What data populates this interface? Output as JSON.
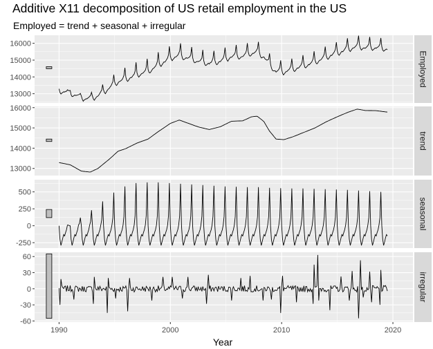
{
  "chart_data": {
    "type": "line",
    "title": "Additive X11 decomposition of US retail employment in the US",
    "subtitle": "Employed = trend + seasonal + irregular",
    "xlabel": "Year",
    "x_ticks": [
      1990,
      2000,
      2010,
      2020
    ],
    "xlim": [
      1987.8,
      2021.8
    ],
    "data_range": [
      1990.0,
      2019.5
    ],
    "grid": true,
    "background": "#ebebeb",
    "gridline_color": "#ffffff",
    "strip_color": "#d9d9d9",
    "line_color": "#000000",
    "scale_bar_fill": "#bfbfbf",
    "panels": [
      {
        "name": "Employed",
        "ylim": [
          12450,
          16480
        ],
        "yticks": [
          13000,
          14000,
          15000,
          16000
        ],
        "scale_bar": [
          14490,
          14610
        ],
        "trend": [
          [
            1990.0,
            13290
          ],
          [
            1991.0,
            13180
          ],
          [
            1992.0,
            12870
          ],
          [
            1992.8,
            12820
          ],
          [
            1993.5,
            13000
          ],
          [
            1994.5,
            13450
          ],
          [
            1995.3,
            13850
          ],
          [
            1996.0,
            13980
          ],
          [
            1997.0,
            14250
          ],
          [
            1998.0,
            14450
          ],
          [
            1999.0,
            14850
          ],
          [
            2000.0,
            15220
          ],
          [
            2000.8,
            15390
          ],
          [
            2001.5,
            15250
          ],
          [
            2002.5,
            15050
          ],
          [
            2003.5,
            14920
          ],
          [
            2004.5,
            15060
          ],
          [
            2005.5,
            15330
          ],
          [
            2006.5,
            15350
          ],
          [
            2007.3,
            15550
          ],
          [
            2007.8,
            15580
          ],
          [
            2008.4,
            15320
          ],
          [
            2008.9,
            14850
          ],
          [
            2009.5,
            14450
          ],
          [
            2010.2,
            14420
          ],
          [
            2011.0,
            14560
          ],
          [
            2012.0,
            14780
          ],
          [
            2013.0,
            15000
          ],
          [
            2014.0,
            15300
          ],
          [
            2015.0,
            15550
          ],
          [
            2016.0,
            15780
          ],
          [
            2016.8,
            15930
          ],
          [
            2017.5,
            15860
          ],
          [
            2018.5,
            15850
          ],
          [
            2019.5,
            15780
          ]
        ],
        "seasonal_scale": 1.0,
        "noise_scale": 0.6
      },
      {
        "name": "trend",
        "ylim": [
          12650,
          16060
        ],
        "yticks": [
          13000,
          14000,
          15000,
          16000
        ],
        "scale_bar": [
          14330,
          14450
        ],
        "trend": [
          [
            1990.0,
            13290
          ],
          [
            1991.0,
            13180
          ],
          [
            1992.0,
            12870
          ],
          [
            1992.8,
            12820
          ],
          [
            1993.5,
            13000
          ],
          [
            1994.5,
            13450
          ],
          [
            1995.3,
            13850
          ],
          [
            1996.0,
            13980
          ],
          [
            1997.0,
            14250
          ],
          [
            1998.0,
            14450
          ],
          [
            1999.0,
            14850
          ],
          [
            2000.0,
            15220
          ],
          [
            2000.8,
            15390
          ],
          [
            2001.5,
            15250
          ],
          [
            2002.5,
            15050
          ],
          [
            2003.5,
            14920
          ],
          [
            2004.5,
            15060
          ],
          [
            2005.5,
            15330
          ],
          [
            2006.5,
            15350
          ],
          [
            2007.3,
            15550
          ],
          [
            2007.8,
            15580
          ],
          [
            2008.4,
            15320
          ],
          [
            2008.9,
            14850
          ],
          [
            2009.5,
            14450
          ],
          [
            2010.2,
            14420
          ],
          [
            2011.0,
            14560
          ],
          [
            2012.0,
            14780
          ],
          [
            2013.0,
            15000
          ],
          [
            2014.0,
            15300
          ],
          [
            2015.0,
            15550
          ],
          [
            2016.0,
            15780
          ],
          [
            2016.8,
            15930
          ],
          [
            2017.5,
            15860
          ],
          [
            2018.5,
            15850
          ],
          [
            2019.5,
            15780
          ]
        ],
        "seasonal_scale": 0,
        "noise_scale": 0
      },
      {
        "name": "seasonal",
        "ylim": [
          -330,
          680
        ],
        "yticks": [
          -250,
          0,
          250,
          500
        ],
        "scale_bar": [
          120,
          240
        ],
        "peak_by_year": [
          [
            1990,
            0
          ],
          [
            1991,
            120
          ],
          [
            1992,
            230
          ],
          [
            1993,
            360
          ],
          [
            1994,
            490
          ],
          [
            1995,
            580
          ],
          [
            1996,
            630
          ],
          [
            1997,
            640
          ],
          [
            1998,
            640
          ],
          [
            1999,
            630
          ],
          [
            2000,
            620
          ],
          [
            2001,
            610
          ],
          [
            2002,
            600
          ],
          [
            2003,
            590
          ],
          [
            2004,
            580
          ],
          [
            2005,
            575
          ],
          [
            2006,
            570
          ],
          [
            2007,
            570
          ],
          [
            2008,
            560
          ],
          [
            2009,
            555
          ],
          [
            2010,
            550
          ],
          [
            2011,
            550
          ],
          [
            2012,
            545
          ],
          [
            2013,
            540
          ],
          [
            2014,
            535
          ],
          [
            2015,
            530
          ],
          [
            2016,
            520
          ],
          [
            2017,
            510
          ],
          [
            2018,
            500
          ],
          [
            2019,
            60
          ]
        ],
        "trough": -290
      },
      {
        "name": "irregular",
        "ylim": [
          -62,
          68
        ],
        "yticks": [
          -60,
          -30,
          0,
          30,
          60
        ],
        "scale_bar": [
          -55,
          65
        ],
        "spikes": [
          [
            1990.05,
            -30
          ],
          [
            1990.2,
            18
          ],
          [
            1991.35,
            -20
          ],
          [
            1993.1,
            -28
          ],
          [
            1993.2,
            22
          ],
          [
            1994.3,
            -45
          ],
          [
            1994.4,
            20
          ],
          [
            1995.05,
            -18
          ],
          [
            1996.2,
            -42
          ],
          [
            1996.3,
            20
          ],
          [
            1998.3,
            -22
          ],
          [
            1999.3,
            22
          ],
          [
            2000.2,
            22
          ],
          [
            2001.05,
            -18
          ],
          [
            2001.6,
            22
          ],
          [
            2003.25,
            -28
          ],
          [
            2003.45,
            26
          ],
          [
            2005.5,
            -22
          ],
          [
            2006.3,
            20
          ],
          [
            2007.2,
            24
          ],
          [
            2008.3,
            -22
          ],
          [
            2009.05,
            -20
          ],
          [
            2009.95,
            -45
          ],
          [
            2010.05,
            24
          ],
          [
            2011.3,
            -25
          ],
          [
            2012.8,
            -28
          ],
          [
            2012.95,
            45
          ],
          [
            2013.25,
            63
          ],
          [
            2013.35,
            -22
          ],
          [
            2014.3,
            -40
          ],
          [
            2015.3,
            23
          ],
          [
            2016.1,
            -22
          ],
          [
            2016.3,
            33
          ],
          [
            2016.9,
            -55
          ],
          [
            2017.05,
            53
          ],
          [
            2017.3,
            -16
          ],
          [
            2017.9,
            32
          ],
          [
            2018.05,
            42
          ],
          [
            2018.1,
            -25
          ],
          [
            2018.8,
            -30
          ],
          [
            2018.95,
            35
          ]
        ],
        "noise_scale": 6
      }
    ]
  }
}
